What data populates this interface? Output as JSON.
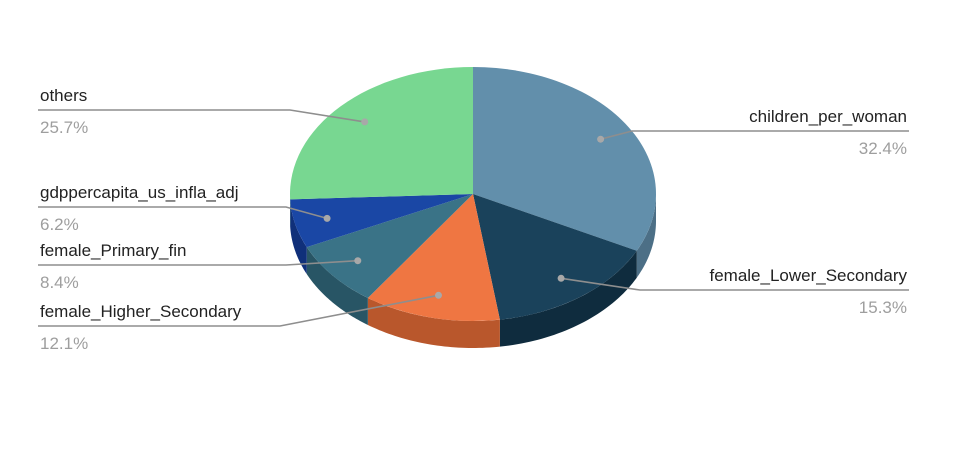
{
  "chart_data": {
    "type": "pie",
    "style": "3d",
    "slices": [
      {
        "label": "children_per_woman",
        "percent_label": "32.4%",
        "value": 32.4,
        "color": "#628fab",
        "side_color": "#4c6f86"
      },
      {
        "label": "female_Lower_Secondary",
        "percent_label": "15.3%",
        "value": 15.3,
        "color": "#1a425b",
        "side_color": "#0f2c3e"
      },
      {
        "label": "female_Higher_Secondary",
        "percent_label": "12.1%",
        "value": 12.1,
        "color": "#ef7642",
        "side_color": "#b9572c"
      },
      {
        "label": "female_Primary_fin",
        "percent_label": "8.4%",
        "value": 8.4,
        "color": "#3a7387",
        "side_color": "#285565"
      },
      {
        "label": "gdppercapita_us_infla_adj",
        "percent_label": "6.2%",
        "value": 6.2,
        "color": "#1a47a5",
        "side_color": "#10307a"
      },
      {
        "label": "others",
        "percent_label": "25.7%",
        "value": 25.7,
        "color": "#78d791",
        "side_color": "#56a86b"
      }
    ]
  }
}
